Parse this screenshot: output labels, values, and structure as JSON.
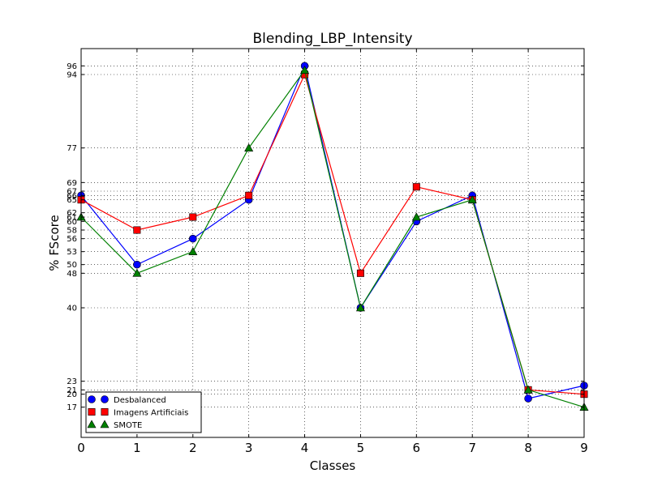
{
  "chart_data": {
    "type": "line",
    "title": "Blending_LBP_Intensity",
    "xlabel": "Classes",
    "ylabel": "% FScore",
    "xlim": [
      0,
      9
    ],
    "ylim": [
      10,
      100
    ],
    "grid": true,
    "legend_position": "bottom-left",
    "x": [
      0,
      1,
      2,
      3,
      4,
      5,
      6,
      7,
      8,
      9
    ],
    "x_ticks": [
      "0",
      "1",
      "2",
      "3",
      "4",
      "5",
      "6",
      "7",
      "8",
      "9"
    ],
    "y_tick_labels": [
      "17",
      "20",
      "21",
      "23",
      "40",
      "48",
      "50",
      "53",
      "56",
      "58",
      "60",
      "61",
      "62",
      "65",
      "66",
      "67",
      "69",
      "77",
      "94",
      "96"
    ],
    "series": [
      {
        "name": "Desbalanced",
        "marker": "circle",
        "color": "#0000ff",
        "values": [
          66,
          50,
          56,
          65,
          96,
          40,
          60,
          66,
          19,
          22
        ]
      },
      {
        "name": "Imagens Artificiais",
        "marker": "square",
        "color": "#ff0000",
        "values": [
          65,
          58,
          61,
          66,
          94,
          48,
          68,
          65,
          21,
          20
        ]
      },
      {
        "name": "SMOTE",
        "marker": "triangle",
        "color": "#008000",
        "values": [
          61,
          48,
          53,
          77,
          95,
          40,
          61,
          65,
          21,
          17
        ]
      }
    ]
  }
}
